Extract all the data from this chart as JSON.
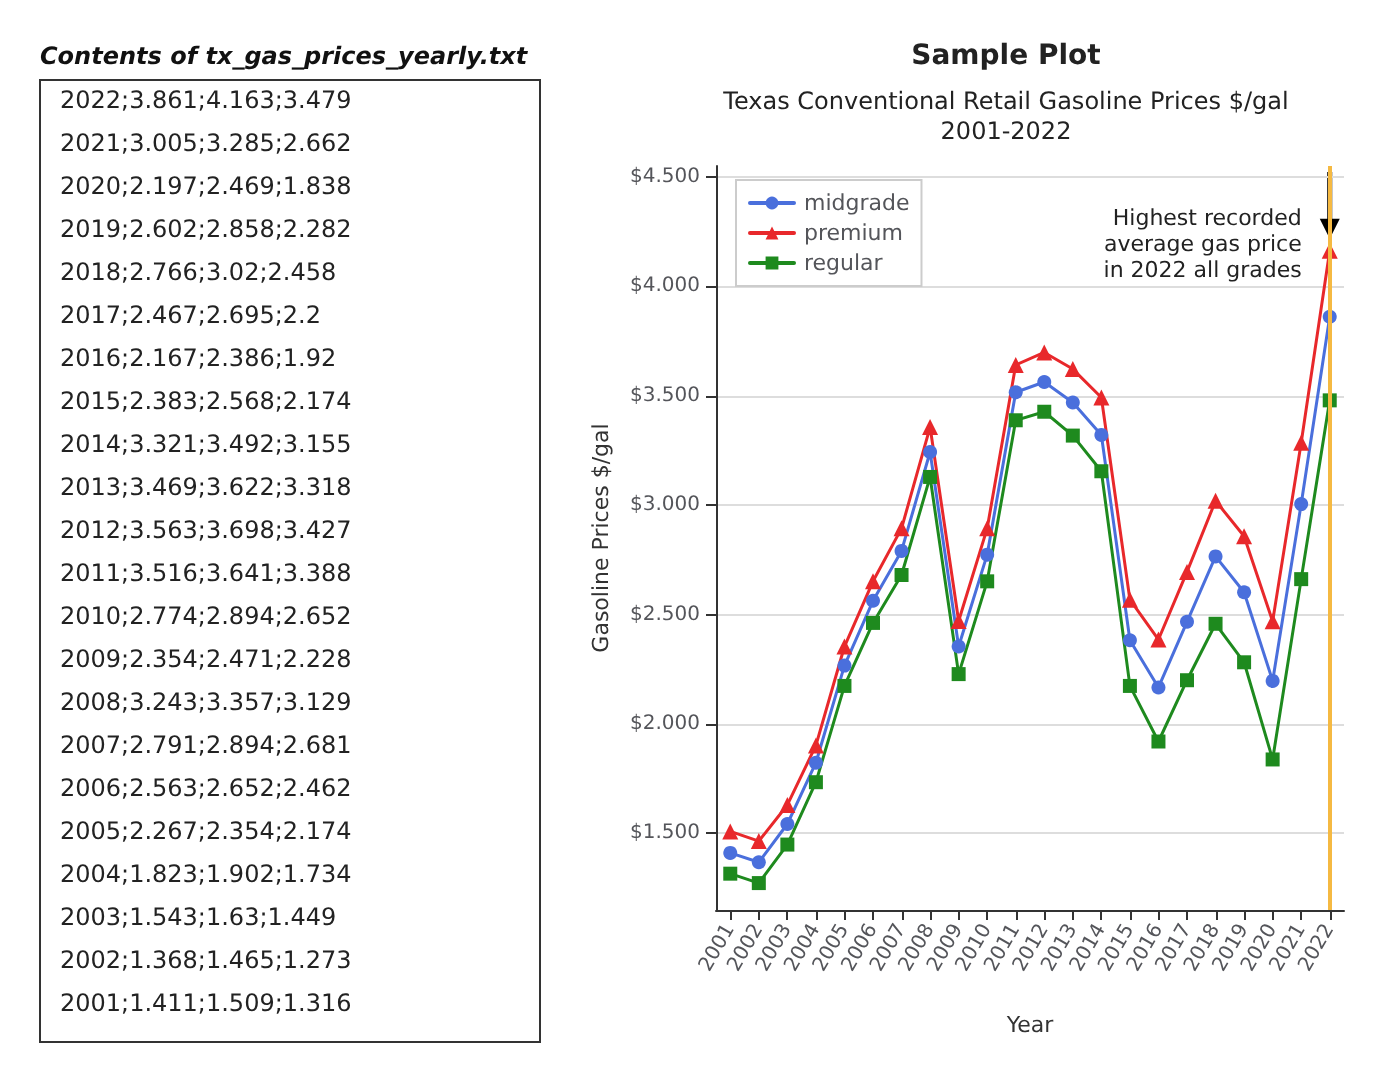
{
  "chart_data": {
    "type": "line",
    "title": "Sample Plot",
    "subtitle": "Texas Conventional Retail Gasoline Prices $/gal\n2001-2022",
    "xlabel": "Year",
    "ylabel": "Gasoline Prices $/gal",
    "categories": [
      "2001",
      "2002",
      "2003",
      "2004",
      "2005",
      "2006",
      "2007",
      "2008",
      "2009",
      "2010",
      "2011",
      "2012",
      "2013",
      "2014",
      "2015",
      "2016",
      "2017",
      "2018",
      "2019",
      "2020",
      "2021",
      "2022"
    ],
    "series": [
      {
        "name": "midgrade",
        "color": "#4a6fdc",
        "marker": "circle",
        "values": [
          1.411,
          1.368,
          1.543,
          1.823,
          2.267,
          2.563,
          2.791,
          3.243,
          2.354,
          2.774,
          3.516,
          3.563,
          3.469,
          3.321,
          2.383,
          2.167,
          2.467,
          2.766,
          2.602,
          2.197,
          3.005,
          3.861
        ]
      },
      {
        "name": "premium",
        "color": "#e8282b",
        "marker": "triangle",
        "values": [
          1.509,
          1.465,
          1.63,
          1.902,
          2.354,
          2.652,
          2.894,
          3.357,
          2.471,
          2.894,
          3.641,
          3.698,
          3.622,
          3.492,
          2.568,
          2.386,
          2.695,
          3.02,
          2.858,
          2.469,
          3.285,
          4.163
        ]
      },
      {
        "name": "regular",
        "color": "#1e8a1e",
        "marker": "square",
        "values": [
          1.316,
          1.273,
          1.449,
          1.734,
          2.174,
          2.462,
          2.681,
          3.129,
          2.228,
          2.652,
          3.388,
          3.427,
          3.318,
          3.155,
          2.174,
          1.92,
          2.2,
          2.458,
          2.282,
          1.838,
          2.662,
          3.479
        ]
      }
    ],
    "ylim": [
      1.15,
      4.55
    ],
    "yticks": [
      {
        "value": 1.5,
        "label": "$1.500"
      },
      {
        "value": 2,
        "label": "$2.000"
      },
      {
        "value": 2.5,
        "label": "$2.500"
      },
      {
        "value": 3,
        "label": "$3.000"
      },
      {
        "value": 3.5,
        "label": "$3.500"
      },
      {
        "value": 4,
        "label": "$4.000"
      },
      {
        "value": 4.5,
        "label": "$4.500"
      }
    ],
    "grid": "y",
    "legend": "top left",
    "line_style": "solid",
    "ref_lines": [
      {
        "axis": "x",
        "value": "2022",
        "color": "#f5b942"
      }
    ],
    "annotations": [
      {
        "text": "Highest recorded\naverage gas price\nin 2022 all grades",
        "x": "2022",
        "y": 4.163
      },
      "Contents of tx_gas_prices_yearly.txt",
      "2022;3.861;4.163;3.479",
      "2021;3.005;3.285;2.662",
      "2020;2.197;2.469;1.838",
      "2019;2.602;2.858;2.282",
      "2018;2.766;3.02;2.458",
      "2017;2.467;2.695;2.2",
      "2016;2.167;2.386;1.92",
      "2015;2.383;2.568;2.174",
      "2014;3.321;3.492;3.155",
      "2013;3.469;3.622;3.318",
      "2012;3.563;3.698;3.427",
      "2011;3.516;3.641;3.388",
      "2010;2.774;2.894;2.652",
      "2009;2.354;2.471;2.228",
      "2008;3.243;3.357;3.129",
      "2007;2.791;2.894;2.681",
      "2006;2.563;2.652;2.462",
      "2005;2.267;2.354;2.174",
      "2004;1.823;1.902;1.734",
      "2003;1.543;1.63;1.449",
      "2002;1.368;1.465;1.273",
      "2001;1.411;1.509;1.316"
    ]
  }
}
